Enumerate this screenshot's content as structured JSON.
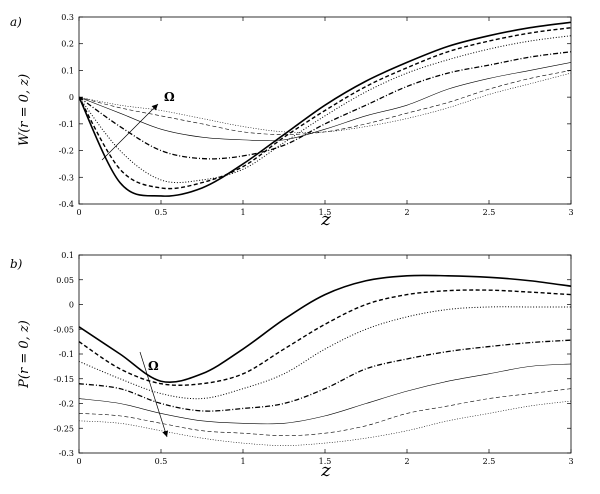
{
  "chart_data": [
    {
      "type": "line",
      "panel_label": "a)",
      "xlabel": "z",
      "ylabel": "W(r = 0, z)",
      "xlim": [
        0,
        3
      ],
      "ylim": [
        -0.4,
        0.3
      ],
      "xticks": [
        "0",
        "0.5",
        "1",
        "1.5",
        "2",
        "2.5",
        "3"
      ],
      "yticks": [
        "-0.4",
        "-0.3",
        "-0.2",
        "-0.1",
        "0",
        "0.1",
        "0.2",
        "0.3"
      ],
      "grid": false,
      "annotation": "Ω",
      "x": [
        0,
        0.25,
        0.5,
        0.75,
        1.0,
        1.25,
        1.5,
        1.75,
        2.0,
        2.25,
        2.5,
        2.75,
        3.0
      ],
      "series": [
        {
          "style": "solid-thick",
          "values": [
            0,
            -0.32,
            -0.37,
            -0.34,
            -0.25,
            -0.14,
            -0.03,
            0.06,
            0.13,
            0.19,
            0.23,
            0.26,
            0.28
          ]
        },
        {
          "style": "dashed-thick",
          "values": [
            0,
            -0.27,
            -0.34,
            -0.32,
            -0.26,
            -0.15,
            -0.05,
            0.04,
            0.11,
            0.17,
            0.21,
            0.24,
            0.26
          ]
        },
        {
          "style": "dotted",
          "values": [
            0,
            -0.2,
            -0.31,
            -0.31,
            -0.27,
            -0.17,
            -0.07,
            0.02,
            0.09,
            0.14,
            0.18,
            0.21,
            0.23
          ]
        },
        {
          "style": "dashdot-thick",
          "values": [
            0,
            -0.11,
            -0.2,
            -0.23,
            -0.22,
            -0.18,
            -0.1,
            -0.03,
            0.04,
            0.09,
            0.12,
            0.15,
            0.17
          ]
        },
        {
          "style": "solid-thin",
          "values": [
            0,
            -0.06,
            -0.12,
            -0.15,
            -0.16,
            -0.16,
            -0.12,
            -0.07,
            -0.03,
            0.03,
            0.07,
            0.1,
            0.13
          ]
        },
        {
          "style": "dashed-thin",
          "values": [
            0,
            -0.04,
            -0.07,
            -0.1,
            -0.13,
            -0.14,
            -0.13,
            -0.1,
            -0.06,
            -0.02,
            0.03,
            0.07,
            0.1
          ]
        },
        {
          "style": "dotted-thin",
          "values": [
            0,
            -0.03,
            -0.05,
            -0.08,
            -0.11,
            -0.13,
            -0.13,
            -0.11,
            -0.08,
            -0.04,
            0.01,
            0.05,
            0.09
          ]
        }
      ]
    },
    {
      "type": "line",
      "panel_label": "b)",
      "xlabel": "z",
      "ylabel": "P(r = 0, z)",
      "xlim": [
        0,
        3
      ],
      "ylim": [
        -0.3,
        0.1
      ],
      "xticks": [
        "0",
        "0.5",
        "1",
        "1.5",
        "2",
        "2.5",
        "3"
      ],
      "yticks": [
        "-0.3",
        "-0.25",
        "-0.2",
        "-0.15",
        "-0.1",
        "-0.05",
        "0",
        "0.05",
        "0.1"
      ],
      "grid": false,
      "annotation": "Ω",
      "x": [
        0,
        0.25,
        0.5,
        0.75,
        1.0,
        1.25,
        1.5,
        1.75,
        2.0,
        2.25,
        2.5,
        2.75,
        3.0
      ],
      "series": [
        {
          "style": "solid-thick",
          "values": [
            -0.045,
            -0.1,
            -0.155,
            -0.14,
            -0.09,
            -0.03,
            0.02,
            0.048,
            0.058,
            0.058,
            0.055,
            0.048,
            0.037
          ]
        },
        {
          "style": "dashed-thick",
          "values": [
            -0.075,
            -0.13,
            -0.16,
            -0.16,
            -0.14,
            -0.09,
            -0.04,
            0.0,
            0.02,
            0.028,
            0.029,
            0.025,
            0.02
          ]
        },
        {
          "style": "dotted",
          "values": [
            -0.115,
            -0.15,
            -0.18,
            -0.19,
            -0.17,
            -0.14,
            -0.09,
            -0.05,
            -0.025,
            -0.01,
            -0.005,
            -0.005,
            -0.005
          ]
        },
        {
          "style": "dashdot-thick",
          "values": [
            -0.16,
            -0.17,
            -0.2,
            -0.215,
            -0.21,
            -0.2,
            -0.17,
            -0.13,
            -0.11,
            -0.095,
            -0.085,
            -0.077,
            -0.072
          ]
        },
        {
          "style": "solid-thin",
          "values": [
            -0.19,
            -0.2,
            -0.22,
            -0.235,
            -0.24,
            -0.24,
            -0.225,
            -0.2,
            -0.175,
            -0.155,
            -0.14,
            -0.125,
            -0.12
          ]
        },
        {
          "style": "dashed-thin",
          "values": [
            -0.22,
            -0.225,
            -0.24,
            -0.255,
            -0.26,
            -0.265,
            -0.26,
            -0.245,
            -0.22,
            -0.205,
            -0.19,
            -0.18,
            -0.17
          ]
        },
        {
          "style": "dotted-thin",
          "values": [
            -0.235,
            -0.24,
            -0.255,
            -0.27,
            -0.28,
            -0.285,
            -0.28,
            -0.27,
            -0.255,
            -0.235,
            -0.22,
            -0.205,
            -0.195
          ]
        }
      ]
    }
  ]
}
